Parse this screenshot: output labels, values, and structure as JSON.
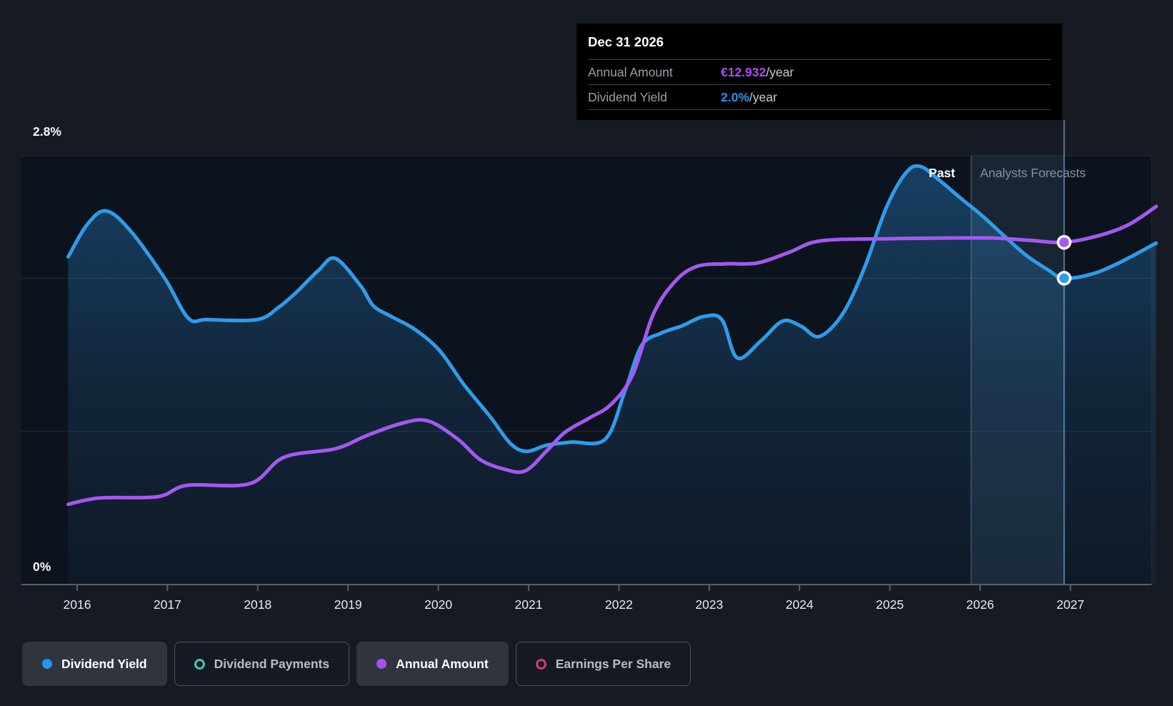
{
  "y_axis": {
    "top": "2.8%",
    "bottom": "0%"
  },
  "annotations": {
    "past": "Past",
    "forecast": "Analysts Forecasts"
  },
  "tooltip": {
    "title": "Dec 31 2026",
    "rows": [
      {
        "label": "Annual Amount",
        "value": "€12.932",
        "suffix": "/year",
        "color": "#ab4df2"
      },
      {
        "label": "Dividend Yield",
        "value": "2.0%",
        "suffix": "/year",
        "color": "#2196f3"
      }
    ]
  },
  "legend": [
    {
      "label": "Dividend Yield",
      "color": "#2196f3",
      "style": "filled",
      "active": true
    },
    {
      "label": "Dividend Payments",
      "color": "#40c9b5",
      "style": "ring",
      "active": false
    },
    {
      "label": "Annual Amount",
      "color": "#a94ff0",
      "style": "filled",
      "active": true
    },
    {
      "label": "Earnings Per Share",
      "color": "#ce3d78",
      "style": "ring",
      "active": false
    }
  ],
  "chart_data": {
    "type": "line",
    "title": "Dividend yield history and forecast",
    "x_ticks": [
      2016,
      2017,
      2018,
      2019,
      2020,
      2021,
      2022,
      2023,
      2024,
      2025,
      2026,
      2027
    ],
    "x_range": [
      2015.9,
      2027.95
    ],
    "y_pct_range": [
      0,
      2.8
    ],
    "gridlines_pct": [
      2.8,
      2.0,
      1.0
    ],
    "grid": true,
    "divider_year": 2025.9,
    "hover_year": 2026.93,
    "eur_to_pct_visual": 0.1728,
    "colors": {
      "dividend_yield": "#2e9cea",
      "annual_amount": "#a558f1"
    },
    "series": [
      {
        "name": "Dividend Yield",
        "unit": "%",
        "color": "#2e9cea",
        "area": true,
        "points": [
          [
            2015.9,
            2.14
          ],
          [
            2016.11,
            2.35
          ],
          [
            2016.32,
            2.44
          ],
          [
            2016.59,
            2.31
          ],
          [
            2016.97,
            2.0
          ],
          [
            2017.23,
            1.74
          ],
          [
            2017.44,
            1.73
          ],
          [
            2017.99,
            1.73
          ],
          [
            2018.23,
            1.81
          ],
          [
            2018.43,
            1.91
          ],
          [
            2018.67,
            2.05
          ],
          [
            2018.86,
            2.13
          ],
          [
            2019.14,
            1.95
          ],
          [
            2019.28,
            1.82
          ],
          [
            2019.48,
            1.75
          ],
          [
            2019.73,
            1.67
          ],
          [
            2020.01,
            1.53
          ],
          [
            2020.29,
            1.3
          ],
          [
            2020.57,
            1.1
          ],
          [
            2020.8,
            0.92
          ],
          [
            2020.98,
            0.87
          ],
          [
            2021.2,
            0.91
          ],
          [
            2021.47,
            0.93
          ],
          [
            2021.85,
            0.95
          ],
          [
            2022.07,
            1.27
          ],
          [
            2022.25,
            1.56
          ],
          [
            2022.46,
            1.64
          ],
          [
            2022.7,
            1.69
          ],
          [
            2022.94,
            1.75
          ],
          [
            2023.14,
            1.73
          ],
          [
            2023.31,
            1.48
          ],
          [
            2023.57,
            1.59
          ],
          [
            2023.81,
            1.72
          ],
          [
            2024.01,
            1.69
          ],
          [
            2024.22,
            1.62
          ],
          [
            2024.48,
            1.77
          ],
          [
            2024.72,
            2.07
          ],
          [
            2024.96,
            2.46
          ],
          [
            2025.18,
            2.69
          ],
          [
            2025.34,
            2.73
          ],
          [
            2025.55,
            2.64
          ],
          [
            2025.79,
            2.52
          ],
          [
            2026.02,
            2.41
          ],
          [
            2026.26,
            2.28
          ],
          [
            2026.51,
            2.15
          ],
          [
            2026.74,
            2.06
          ],
          [
            2026.93,
            2.0
          ],
          [
            2027.25,
            2.03
          ],
          [
            2027.57,
            2.11
          ],
          [
            2027.95,
            2.23
          ]
        ]
      },
      {
        "name": "Annual Amount",
        "unit": "EUR",
        "color": "#a558f1",
        "area": false,
        "points": [
          [
            2015.9,
            3.03
          ],
          [
            2016.25,
            3.27
          ],
          [
            2016.89,
            3.32
          ],
          [
            2017.22,
            3.75
          ],
          [
            2017.91,
            3.81
          ],
          [
            2018.29,
            4.81
          ],
          [
            2018.86,
            5.13
          ],
          [
            2019.2,
            5.62
          ],
          [
            2019.58,
            6.08
          ],
          [
            2019.88,
            6.19
          ],
          [
            2020.21,
            5.51
          ],
          [
            2020.46,
            4.73
          ],
          [
            2020.72,
            4.37
          ],
          [
            2020.96,
            4.29
          ],
          [
            2021.2,
            5.05
          ],
          [
            2021.4,
            5.75
          ],
          [
            2021.67,
            6.29
          ],
          [
            2021.91,
            6.8
          ],
          [
            2022.15,
            7.91
          ],
          [
            2022.38,
            10.21
          ],
          [
            2022.62,
            11.45
          ],
          [
            2022.86,
            12.02
          ],
          [
            2023.18,
            12.12
          ],
          [
            2023.53,
            12.15
          ],
          [
            2023.89,
            12.56
          ],
          [
            2024.24,
            12.99
          ],
          [
            2025.03,
            13.07
          ],
          [
            2026.06,
            13.1
          ],
          [
            2026.54,
            13.01
          ],
          [
            2026.93,
            12.93
          ],
          [
            2027.33,
            13.2
          ],
          [
            2027.65,
            13.61
          ],
          [
            2027.95,
            14.29
          ]
        ]
      }
    ],
    "markers": [
      {
        "series": "Annual Amount",
        "year": 2026.93,
        "value": 12.932,
        "unit": "EUR"
      },
      {
        "series": "Dividend Yield",
        "year": 2026.93,
        "value": 2.0,
        "unit": "%"
      }
    ]
  }
}
